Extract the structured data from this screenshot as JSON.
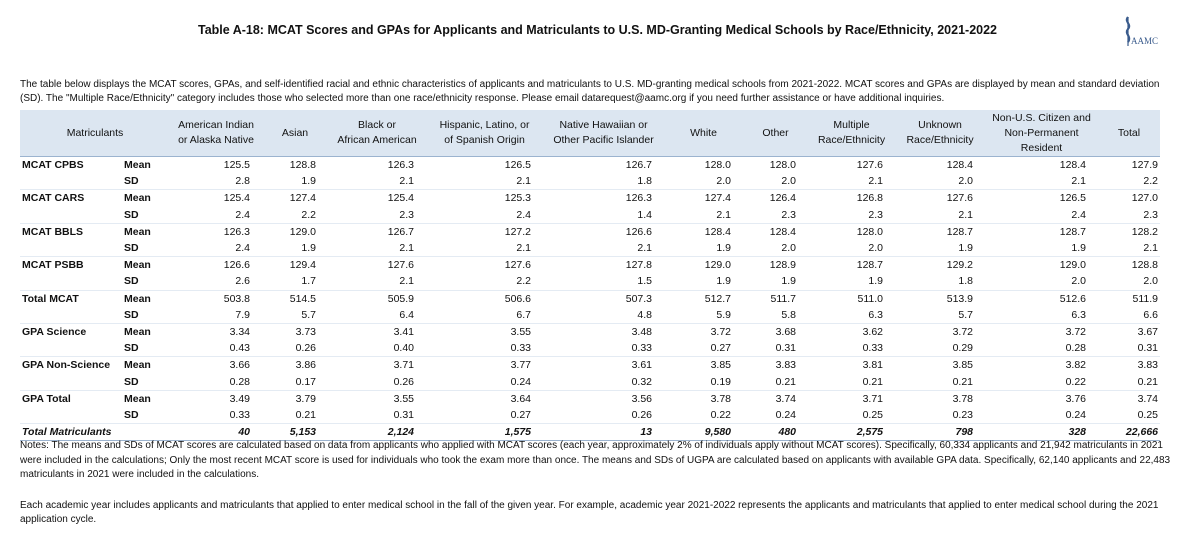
{
  "header": {
    "title": "Table A-18: MCAT Scores and GPAs for Applicants and Matriculants to U.S. MD-Granting Medical Schools by Race/Ethnicity, 2021-2022",
    "logo_text": "AAMC"
  },
  "description": "The table below displays the MCAT scores, GPAs, and self-identified racial and ethnic characteristics of applicants and matriculants to U.S. MD-granting medical schools from 2021-2022. MCAT scores and GPAs are displayed by mean and standard deviation (SD). The \"Multiple Race/Ethnicity\" category includes those who selected more than one race/ethnicity response. Please email datarequest@aamc.org if you need further assistance or have additional inquiries.",
  "table": {
    "columns": [
      [
        "Matriculants"
      ],
      [
        "American Indian",
        "or Alaska Native"
      ],
      [
        "Asian"
      ],
      [
        "Black or",
        "African American"
      ],
      [
        "Hispanic, Latino, or",
        "of Spanish Origin"
      ],
      [
        "Native Hawaiian or",
        "Other Pacific Islander"
      ],
      [
        "White"
      ],
      [
        "Other"
      ],
      [
        "Multiple",
        "Race/Ethnicity"
      ],
      [
        "Unknown",
        "Race/Ethnicity"
      ],
      [
        "Non-U.S. Citizen and",
        "Non-Permanent",
        "Resident"
      ],
      [
        "Total"
      ]
    ],
    "rows": [
      {
        "group": "MCAT CPBS",
        "stat": "Mean",
        "values": [
          "125.5",
          "128.8",
          "126.3",
          "126.5",
          "126.7",
          "128.0",
          "128.0",
          "127.6",
          "128.4",
          "128.4",
          "127.9"
        ]
      },
      {
        "stat": "SD",
        "values": [
          "2.8",
          "1.9",
          "2.1",
          "2.1",
          "1.8",
          "2.0",
          "2.0",
          "2.1",
          "2.0",
          "2.1",
          "2.2"
        ]
      },
      {
        "group": "MCAT CARS",
        "stat": "Mean",
        "values": [
          "125.4",
          "127.4",
          "125.4",
          "125.3",
          "126.3",
          "127.4",
          "126.4",
          "126.8",
          "127.6",
          "126.5",
          "127.0"
        ]
      },
      {
        "stat": "SD",
        "values": [
          "2.4",
          "2.2",
          "2.3",
          "2.4",
          "1.4",
          "2.1",
          "2.3",
          "2.3",
          "2.1",
          "2.4",
          "2.3"
        ]
      },
      {
        "group": "MCAT BBLS",
        "stat": "Mean",
        "values": [
          "126.3",
          "129.0",
          "126.7",
          "127.2",
          "126.6",
          "128.4",
          "128.4",
          "128.0",
          "128.7",
          "128.7",
          "128.2"
        ]
      },
      {
        "stat": "SD",
        "values": [
          "2.4",
          "1.9",
          "2.1",
          "2.1",
          "2.1",
          "1.9",
          "2.0",
          "2.0",
          "1.9",
          "1.9",
          "2.1"
        ]
      },
      {
        "group": "MCAT PSBB",
        "stat": "Mean",
        "values": [
          "126.6",
          "129.4",
          "127.6",
          "127.6",
          "127.8",
          "129.0",
          "128.9",
          "128.7",
          "129.2",
          "129.0",
          "128.8"
        ]
      },
      {
        "stat": "SD",
        "values": [
          "2.6",
          "1.7",
          "2.1",
          "2.2",
          "1.5",
          "1.9",
          "1.9",
          "1.9",
          "1.8",
          "2.0",
          "2.0"
        ]
      },
      {
        "group": "Total MCAT",
        "stat": "Mean",
        "values": [
          "503.8",
          "514.5",
          "505.9",
          "506.6",
          "507.3",
          "512.7",
          "511.7",
          "511.0",
          "513.9",
          "512.6",
          "511.9"
        ]
      },
      {
        "stat": "SD",
        "values": [
          "7.9",
          "5.7",
          "6.4",
          "6.7",
          "4.8",
          "5.9",
          "5.8",
          "6.3",
          "5.7",
          "6.3",
          "6.6"
        ]
      },
      {
        "group": "GPA Science",
        "stat": "Mean",
        "values": [
          "3.34",
          "3.73",
          "3.41",
          "3.55",
          "3.48",
          "3.72",
          "3.68",
          "3.62",
          "3.72",
          "3.72",
          "3.67"
        ]
      },
      {
        "stat": "SD",
        "values": [
          "0.43",
          "0.26",
          "0.40",
          "0.33",
          "0.33",
          "0.27",
          "0.31",
          "0.33",
          "0.29",
          "0.28",
          "0.31"
        ]
      },
      {
        "group": "GPA Non-Science",
        "stat": "Mean",
        "values": [
          "3.66",
          "3.86",
          "3.71",
          "3.77",
          "3.61",
          "3.85",
          "3.83",
          "3.81",
          "3.85",
          "3.82",
          "3.83"
        ]
      },
      {
        "stat": "SD",
        "values": [
          "0.28",
          "0.17",
          "0.26",
          "0.24",
          "0.32",
          "0.19",
          "0.21",
          "0.21",
          "0.21",
          "0.22",
          "0.21"
        ]
      },
      {
        "group": "GPA Total",
        "stat": "Mean",
        "values": [
          "3.49",
          "3.79",
          "3.55",
          "3.64",
          "3.56",
          "3.78",
          "3.74",
          "3.71",
          "3.78",
          "3.76",
          "3.74"
        ]
      },
      {
        "stat": "SD",
        "values": [
          "0.33",
          "0.21",
          "0.31",
          "0.27",
          "0.26",
          "0.22",
          "0.24",
          "0.25",
          "0.23",
          "0.24",
          "0.25"
        ]
      }
    ],
    "total": {
      "label": "Total Matriculants",
      "values": [
        "40",
        "5,153",
        "2,124",
        "1,575",
        "13",
        "9,580",
        "480",
        "2,575",
        "798",
        "328",
        "22,666"
      ]
    }
  },
  "notes": [
    "Notes: The means and SDs of MCAT scores are calculated based on data from applicants who applied with MCAT scores (each year, approximately 2% of individuals apply without MCAT scores).  Specifically, 60,334 applicants and 21,942 matriculants in 2021 were included in the calculations;  Only the most recent MCAT score is used for individuals who took the exam more than once. The means and SDs of UGPA are calculated based on applicants with available GPA data.  Specifically, 62,140 applicants and 22,483 matriculants in 2021 were included in the calculations.",
    "Each academic year includes applicants and matriculants that applied to enter medical school in the fall of the given year. For example, academic year 2021-2022 represents the applicants and matriculants that applied to enter medical school during the 2021 application cycle."
  ]
}
